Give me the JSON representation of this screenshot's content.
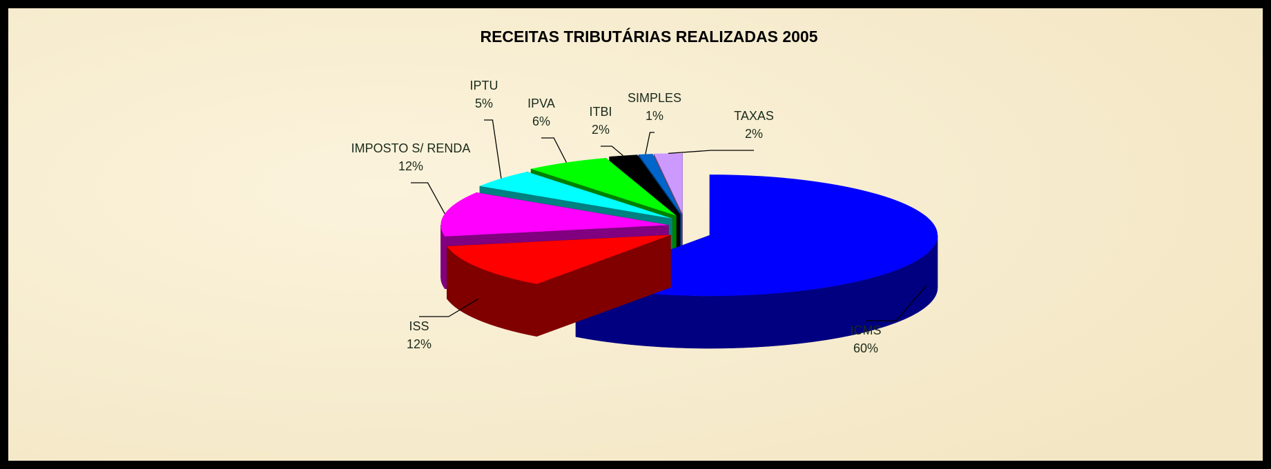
{
  "chart_data": {
    "type": "pie3d",
    "title": "RECEITAS TRIBUTÁRIAS REALIZADAS 2005",
    "categories": [
      "ICMS",
      "ISS",
      "IMPOSTO S/ RENDA",
      "IPTU",
      "IPVA",
      "ITBI",
      "SIMPLES",
      "TAXAS"
    ],
    "values": [
      60,
      12,
      12,
      5,
      6,
      2,
      1,
      2
    ],
    "value_labels": [
      "60%",
      "12%",
      "12%",
      "5%",
      "6%",
      "2%",
      "1%",
      "2%"
    ],
    "colors": [
      "#0000ff",
      "#ff0000",
      "#ff00ff",
      "#00ffff",
      "#00ff00",
      "#000000",
      "#0066cc",
      "#cc99ff"
    ]
  }
}
